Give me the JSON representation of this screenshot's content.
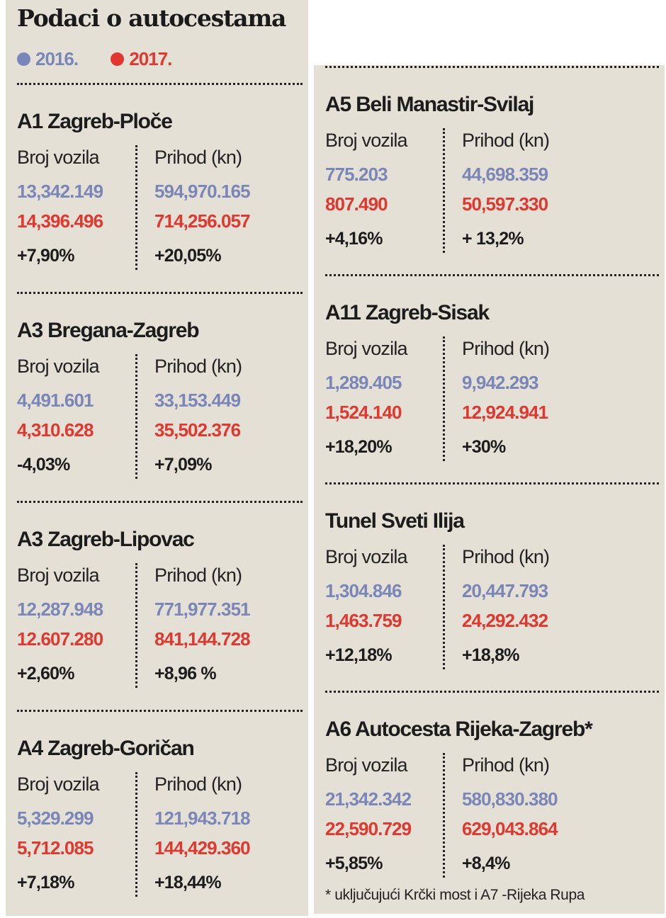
{
  "title": "Podaci o autocestama",
  "legend": [
    {
      "label": "2016.",
      "color": "#7b86b8"
    },
    {
      "label": "2017.",
      "color": "#e0372e"
    }
  ],
  "colors": {
    "year2016": "#7b86b8",
    "year2017": "#e0372e",
    "background": "#e4e0d6"
  },
  "column_labels": {
    "vehicles": "Broj vozila",
    "revenue": "Prihod (kn)"
  },
  "left_sections": [
    {
      "name": "A1 Zagreb-Ploče",
      "vehicles_2016": "13,342.149",
      "vehicles_2017": "14,396.496",
      "vehicles_change": "+7,90%",
      "revenue_2016": "594,970.165",
      "revenue_2017": "714,256.057",
      "revenue_change": "+20,05%"
    },
    {
      "name": "A3 Bregana-Zagreb",
      "vehicles_2016": "4,491.601",
      "vehicles_2017": "4,310.628",
      "vehicles_change": "-4,03%",
      "revenue_2016": "33,153.449",
      "revenue_2017": "35,502.376",
      "revenue_change": "+7,09%"
    },
    {
      "name": "A3 Zagreb-Lipovac",
      "vehicles_2016": "12,287.948",
      "vehicles_2017": "12.607.280",
      "vehicles_change": "+2,60%",
      "revenue_2016": "771,977.351",
      "revenue_2017": "841,144.728",
      "revenue_change": "+8,96 %"
    },
    {
      "name": "A4 Zagreb-Goričan",
      "vehicles_2016": "5,329.299",
      "vehicles_2017": "5,712.085",
      "vehicles_change": "+7,18%",
      "revenue_2016": "121,943.718",
      "revenue_2017": "144,429.360",
      "revenue_change": "+18,44%"
    }
  ],
  "right_sections": [
    {
      "name": "A5 Beli Manastir-Svilaj",
      "vehicles_2016": "775.203",
      "vehicles_2017": "807.490",
      "vehicles_change": "+4,16%",
      "revenue_2016": "44,698.359",
      "revenue_2017": "50,597.330",
      "revenue_change": "+ 13,2%"
    },
    {
      "name": "A11 Zagreb-Sisak",
      "vehicles_2016": "1,289.405",
      "vehicles_2017": "1,524.140",
      "vehicles_change": "+18,20%",
      "revenue_2016": "9,942.293",
      "revenue_2017": "12,924.941",
      "revenue_change": "+30%"
    },
    {
      "name": "Tunel Sveti Ilija",
      "vehicles_2016": "1,304.846",
      "vehicles_2017": "1,463.759",
      "vehicles_change": "+12,18%",
      "revenue_2016": "20,447.793",
      "revenue_2017": "24,292.432",
      "revenue_change": "+18,8%"
    },
    {
      "name": "A6 Autocesta Rijeka-Zagreb*",
      "vehicles_2016": "21,342.342",
      "vehicles_2017": "22,590.729",
      "vehicles_change": "+5,85%",
      "revenue_2016": "580,830.380",
      "revenue_2017": "629,043.864",
      "revenue_change": "+8,4%"
    }
  ],
  "footnote": "* uključujući Krčki most i A7 -Rijeka Rupa"
}
